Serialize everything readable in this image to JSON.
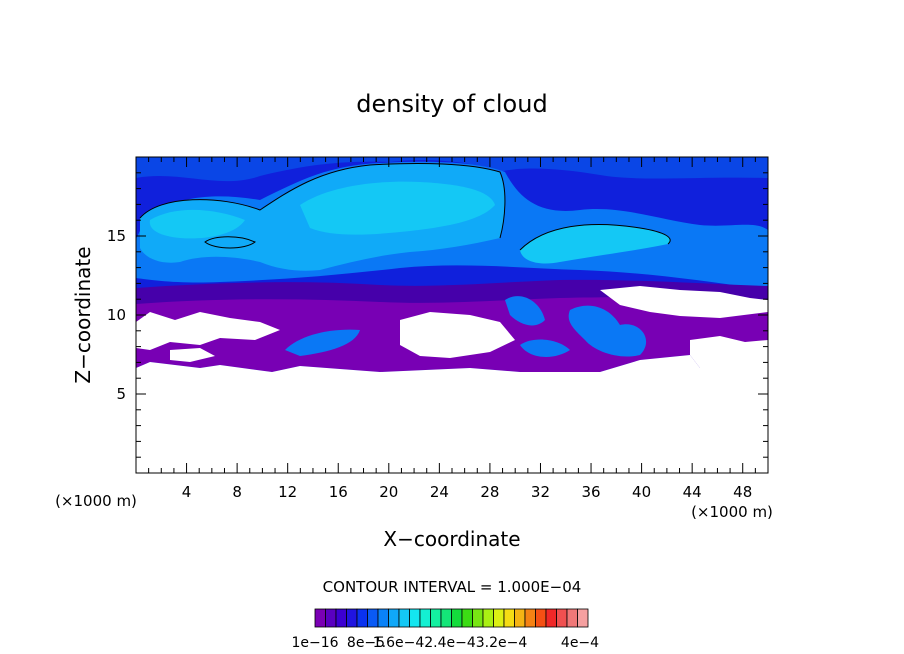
{
  "chart_data": {
    "type": "heatmap",
    "title": "density of cloud",
    "xlabel": "X−coordinate",
    "ylabel": "Z−coordinate",
    "x_unit_left": "(×1000 m)",
    "x_unit_right": "(×1000 m)",
    "xlim": [
      0,
      50
    ],
    "ylim": [
      0,
      20
    ],
    "x_ticks": [
      4,
      8,
      12,
      16,
      20,
      24,
      28,
      32,
      36,
      40,
      44,
      48
    ],
    "y_ticks": [
      5,
      10,
      15
    ],
    "contour_interval_text": "CONTOUR INTERVAL = 1.000E−04",
    "colorbar_labels": [
      "1e−16",
      "8e−5",
      "1.6e−42.4e−43.2e−4",
      "4e−4"
    ],
    "colorbar_range": [
      1e-16,
      0.0004
    ],
    "colorbar_colors": [
      "#7a00b4",
      "#5a00c0",
      "#3c00d2",
      "#2014e0",
      "#0a32f0",
      "#0a5af5",
      "#0a82f8",
      "#10a8f8",
      "#14c8f5",
      "#14e6f0",
      "#14f0d2",
      "#14f0a0",
      "#14e678",
      "#14dc3c",
      "#3cdc14",
      "#78e614",
      "#aaf014",
      "#dcf014",
      "#f5dc14",
      "#f5b414",
      "#f58214",
      "#f55014",
      "#f02828",
      "#f05050",
      "#f07878",
      "#f5a0a0"
    ],
    "background_color": "#1020dc",
    "field_colors": {
      "upper_dark": "#0a46e6",
      "mid_blue": "#0a78f5",
      "light_cyan": "#10aaf8",
      "cyan": "#14c8f5",
      "purple": "#7800b4",
      "dark_purple": "#4600aa"
    }
  }
}
